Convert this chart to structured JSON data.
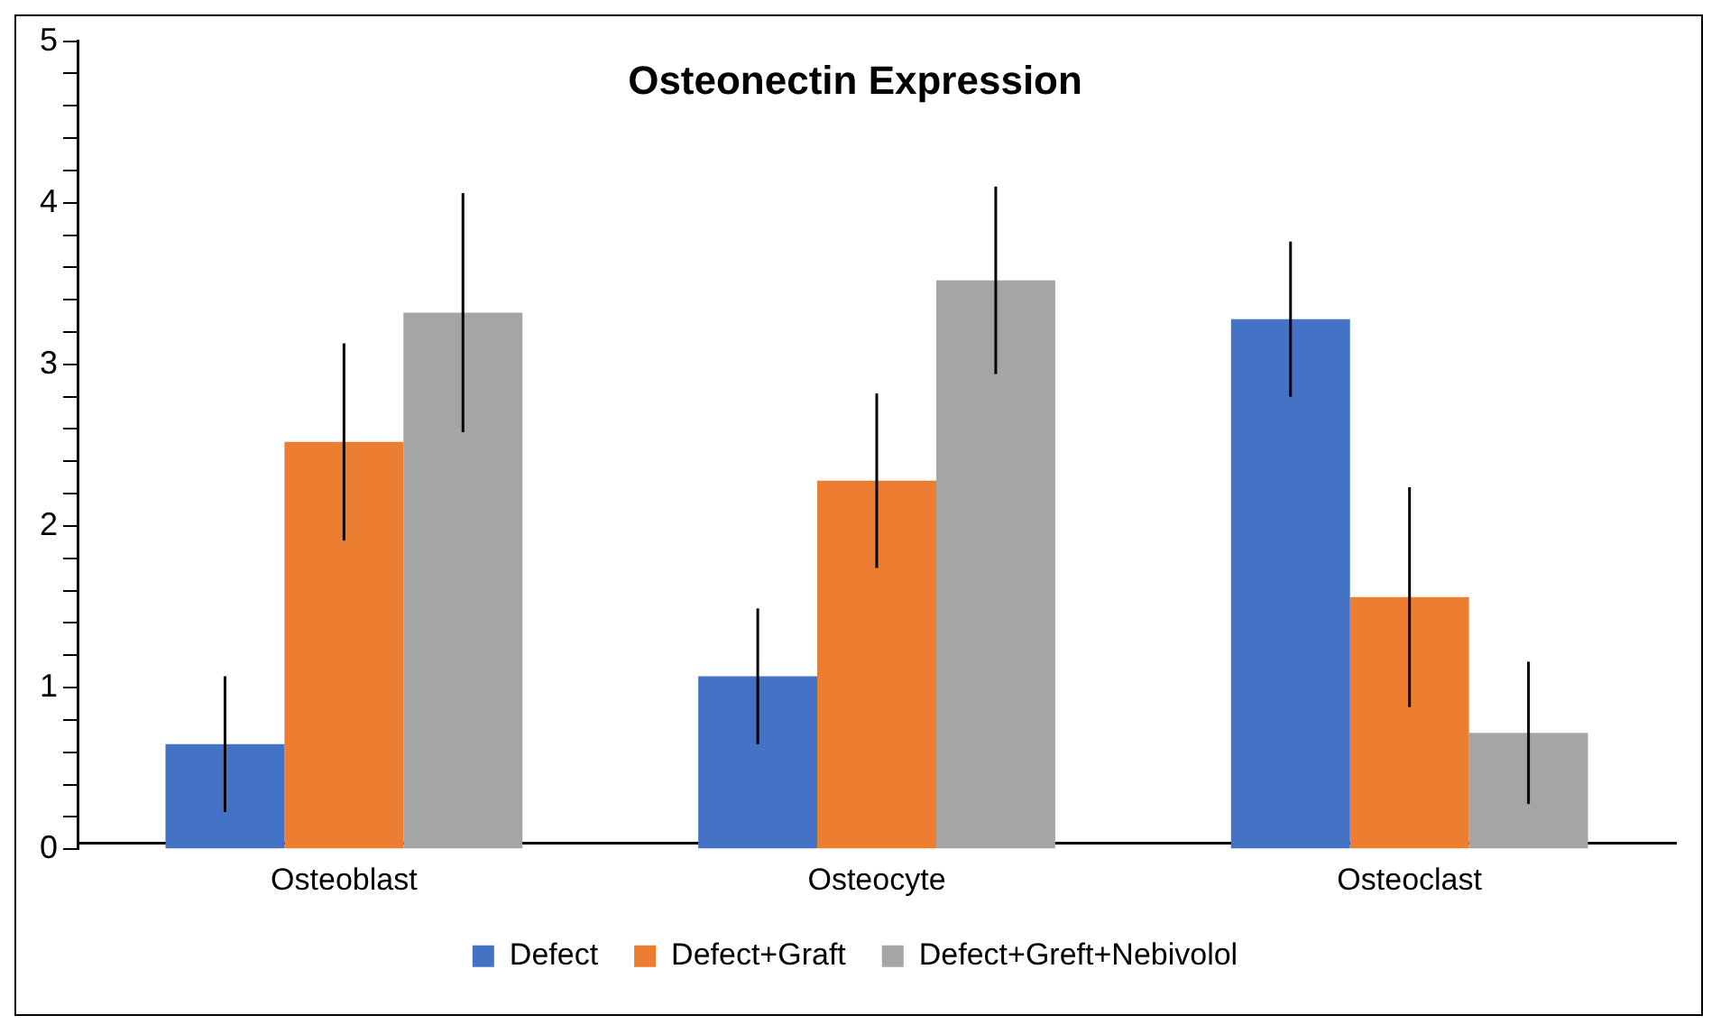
{
  "chart_data": {
    "type": "bar",
    "title": "Osteonectin Expression",
    "categories": [
      "Osteoblast",
      "Osteocyte",
      "Osteoclast"
    ],
    "series": [
      {
        "name": "Defect",
        "color": "#4472c4",
        "values": [
          0.65,
          1.07,
          3.28
        ],
        "errors": [
          0.42,
          0.42,
          0.48
        ]
      },
      {
        "name": "Defect+Graft",
        "color": "#ed7d31",
        "values": [
          2.52,
          2.28,
          1.56
        ],
        "errors": [
          0.61,
          0.54,
          0.68
        ]
      },
      {
        "name": "Defect+Greft+Nebivolol",
        "color": "#a5a5a5",
        "values": [
          3.32,
          3.52,
          0.72
        ],
        "errors": [
          0.74,
          0.58,
          0.44
        ]
      }
    ],
    "ylim": [
      0,
      5
    ],
    "yticks": [
      0,
      {
        "value": 0.2,
        "label": null
      },
      {
        "value": 0.4,
        "label": null
      },
      {
        "value": 0.6,
        "label": null
      },
      {
        "value": 0.8,
        "label": null
      },
      1,
      {
        "value": 1.2,
        "label": null
      },
      {
        "value": 1.4,
        "label": null
      },
      {
        "value": 1.6,
        "label": null
      },
      {
        "value": 1.8,
        "label": null
      },
      2,
      {
        "value": 2.2,
        "label": null
      },
      {
        "value": 2.4,
        "label": null
      },
      {
        "value": 2.6,
        "label": null
      },
      {
        "value": 2.8,
        "label": null
      },
      3,
      {
        "value": 3.2,
        "label": null
      },
      {
        "value": 3.4,
        "label": null
      },
      {
        "value": 3.6,
        "label": null
      },
      {
        "value": 3.8,
        "label": null
      },
      4,
      {
        "value": 4.2,
        "label": null
      },
      {
        "value": 4.4,
        "label": null
      },
      {
        "value": 4.6,
        "label": null
      },
      {
        "value": 4.8,
        "label": null
      },
      5
    ],
    "grid": false,
    "legend": "bottom"
  }
}
